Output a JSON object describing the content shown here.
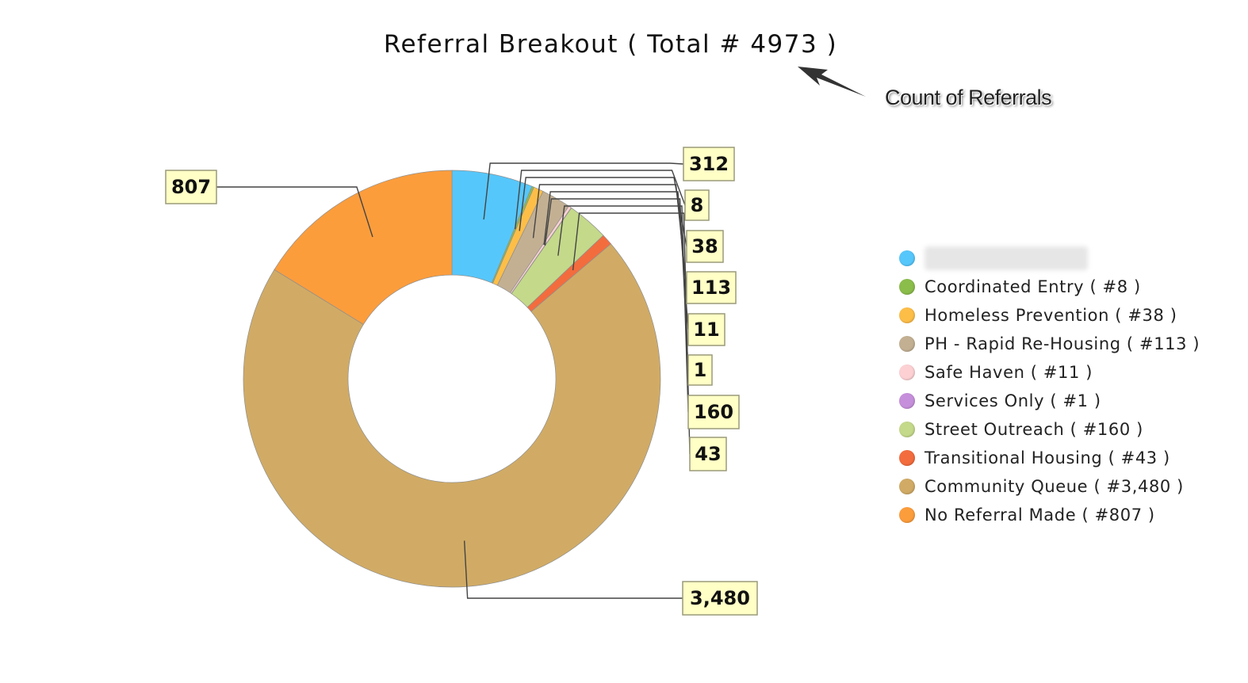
{
  "chart_data": {
    "type": "pie",
    "style": "donut",
    "title": "Referral Breakout ( Total # 4973 )",
    "annotation": "Count of Referrals",
    "slices": [
      {
        "label": "",
        "value": 312,
        "display": "312",
        "color": "#56c7fb",
        "obscured": true
      },
      {
        "label": "Coordinated Entry ( #8 )",
        "value": 8,
        "display": "8",
        "color": "#8bbd4b"
      },
      {
        "label": "Homeless Prevention ( #38 )",
        "value": 38,
        "display": "38",
        "color": "#fdbe48"
      },
      {
        "label": "PH - Rapid Re-Housing ( #113 )",
        "value": 113,
        "display": "113",
        "color": "#c3b093"
      },
      {
        "label": "Safe Haven ( #11 )",
        "value": 11,
        "display": "11",
        "color": "#fdd1d4"
      },
      {
        "label": "Services Only ( #1 )",
        "value": 1,
        "display": "1",
        "color": "#c68fdb"
      },
      {
        "label": "Street Outreach ( #160 )",
        "value": 160,
        "display": "160",
        "color": "#c4d98a"
      },
      {
        "label": "Transitional Housing ( #43 )",
        "value": 43,
        "display": "43",
        "color": "#f36c3e"
      },
      {
        "label": "Community Queue ( #3,480 )",
        "value": 3480,
        "display": "3,480",
        "color": "#d1ab65"
      },
      {
        "label": "No Referral Made ( #807 )",
        "value": 807,
        "display": "807",
        "color": "#fc9d3c"
      }
    ],
    "legend_position": "right"
  }
}
